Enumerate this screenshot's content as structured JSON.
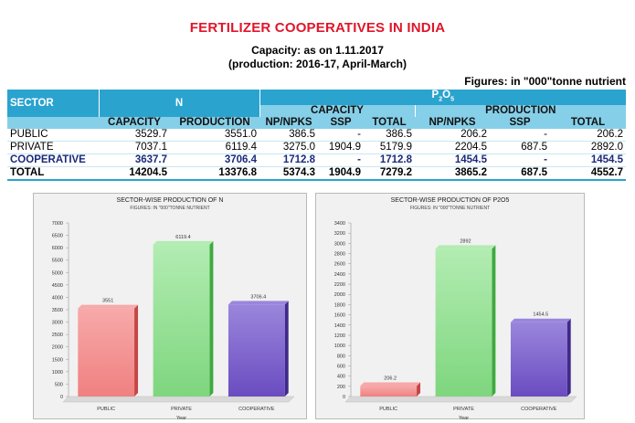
{
  "header": {
    "title": "FERTILIZER COOPERATIVES IN INDIA",
    "subtitle1": "Capacity: as on 1.11.2017",
    "subtitle2": "(production: 2016-17, April-March)",
    "figures_note": "Figures: in \"000\"tonne nutrient"
  },
  "table": {
    "sector_label": "SECTOR",
    "n_label": "N",
    "p2o5_label": "P",
    "p2o5_sub2": "2",
    "p2o5_o": "O",
    "p2o5_sub5": "5",
    "capacity_group": "CAPACITY",
    "production_group": "PRODUCTION",
    "col_capacity": "CAPACITY",
    "col_production": "PRODUCTION",
    "col_npnpks_c": "NP/NPKS",
    "col_ssp_c": "SSP",
    "col_total_c": "TOTAL",
    "col_npnpks_p": "NP/NPKS",
    "col_ssp_p": "SSP",
    "col_total_p": "TOTAL",
    "rows": [
      {
        "sector": "PUBLIC",
        "n_cap": "3529.7",
        "n_prod": "3551.0",
        "p_cap_np": "386.5",
        "p_cap_ssp": "-",
        "p_cap_total": "386.5",
        "p_prod_np": "206.2",
        "p_prod_ssp": "-",
        "p_prod_total": "206.2"
      },
      {
        "sector": "PRIVATE",
        "n_cap": "7037.1",
        "n_prod": "6119.4",
        "p_cap_np": "3275.0",
        "p_cap_ssp": "1904.9",
        "p_cap_total": "5179.9",
        "p_prod_np": "2204.5",
        "p_prod_ssp": "687.5",
        "p_prod_total": "2892.0"
      },
      {
        "sector": "COOPERATIVE",
        "n_cap": "3637.7",
        "n_prod": "3706.4",
        "p_cap_np": "1712.8",
        "p_cap_ssp": "-",
        "p_cap_total": "1712.8",
        "p_prod_np": "1454.5",
        "p_prod_ssp": "-",
        "p_prod_total": "1454.5"
      },
      {
        "sector": "TOTAL",
        "n_cap": "14204.5",
        "n_prod": "13376.8",
        "p_cap_np": "5374.3",
        "p_cap_ssp": "1904.9",
        "p_cap_total": "7279.2",
        "p_prod_np": "3865.2",
        "p_prod_ssp": "687.5",
        "p_prod_total": "4552.7"
      }
    ]
  },
  "colors": {
    "title": "#e0162b",
    "header_bg": "#2aa3cf",
    "public_bar": "#f08080",
    "private_bar": "#7ed67e",
    "coop_bar": "#6a4cc0"
  },
  "chart_data": [
    {
      "type": "bar",
      "title": "SECTOR-WISE PRODUCTION OF N",
      "subtitle": "FIGURES: IN \"000\"TONNE NUTRIENT",
      "xlabel": "Year",
      "ylabel": "",
      "categories": [
        "PUBLIC",
        "PRIVATE",
        "COOPERATIVE"
      ],
      "values": [
        3551,
        6119.4,
        3706.4
      ],
      "data_labels": [
        "3551",
        "6119.4",
        "3706.4"
      ],
      "ylim": [
        0,
        7000
      ],
      "ytick_step": 500,
      "grid": false
    },
    {
      "type": "bar",
      "title": "SECTOR-WISE PRODUCTION OF P2O5",
      "subtitle": "FIGURES: IN \"000\"TONNE NUTRIENT",
      "xlabel": "Year",
      "ylabel": "",
      "categories": [
        "PUBLIC",
        "PRIVATE",
        "COOPERATIVE"
      ],
      "values": [
        206.2,
        2892,
        1454.5
      ],
      "data_labels": [
        "206.2",
        "2892",
        "1454.5"
      ],
      "ylim": [
        0,
        3400
      ],
      "ytick_step": 200,
      "grid": false
    }
  ]
}
